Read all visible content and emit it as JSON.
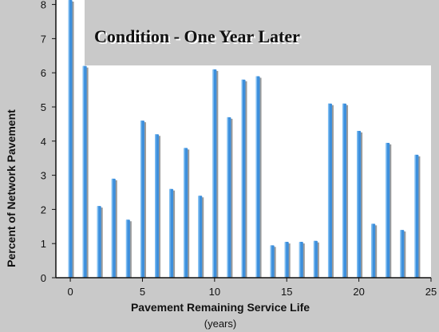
{
  "chart_data": {
    "type": "bar",
    "title": "Condition - One Year Later",
    "xlabel": "Pavement Remaining Service Life",
    "xlabel_sub": "(years)",
    "ylabel": "Percent of Network Pavement",
    "x": [
      0,
      1,
      2,
      3,
      4,
      5,
      6,
      7,
      8,
      9,
      10,
      11,
      12,
      13,
      14,
      15,
      16,
      17,
      18,
      19,
      20,
      21,
      22,
      23,
      24
    ],
    "values": [
      8.3,
      6.2,
      2.1,
      2.9,
      1.7,
      4.6,
      4.2,
      2.6,
      3.8,
      2.4,
      6.1,
      4.7,
      5.8,
      5.9,
      0.95,
      1.05,
      1.05,
      1.08,
      5.1,
      5.1,
      4.3,
      1.58,
      3.95,
      1.4,
      3.6
    ],
    "xlim": [
      -1,
      25
    ],
    "ylim": [
      0,
      8
    ],
    "xticks": [
      0,
      5,
      10,
      15,
      20,
      25
    ],
    "yticks": [
      0,
      1,
      2,
      3,
      4,
      5,
      6,
      7,
      8
    ],
    "colors": {
      "bar": "#3d8fdc",
      "bar_highlight": "#7fbef2",
      "bar_shadow": "#9b9b9b",
      "plot_bg": "#ffffff",
      "title_box": "#c9c9c9"
    }
  }
}
